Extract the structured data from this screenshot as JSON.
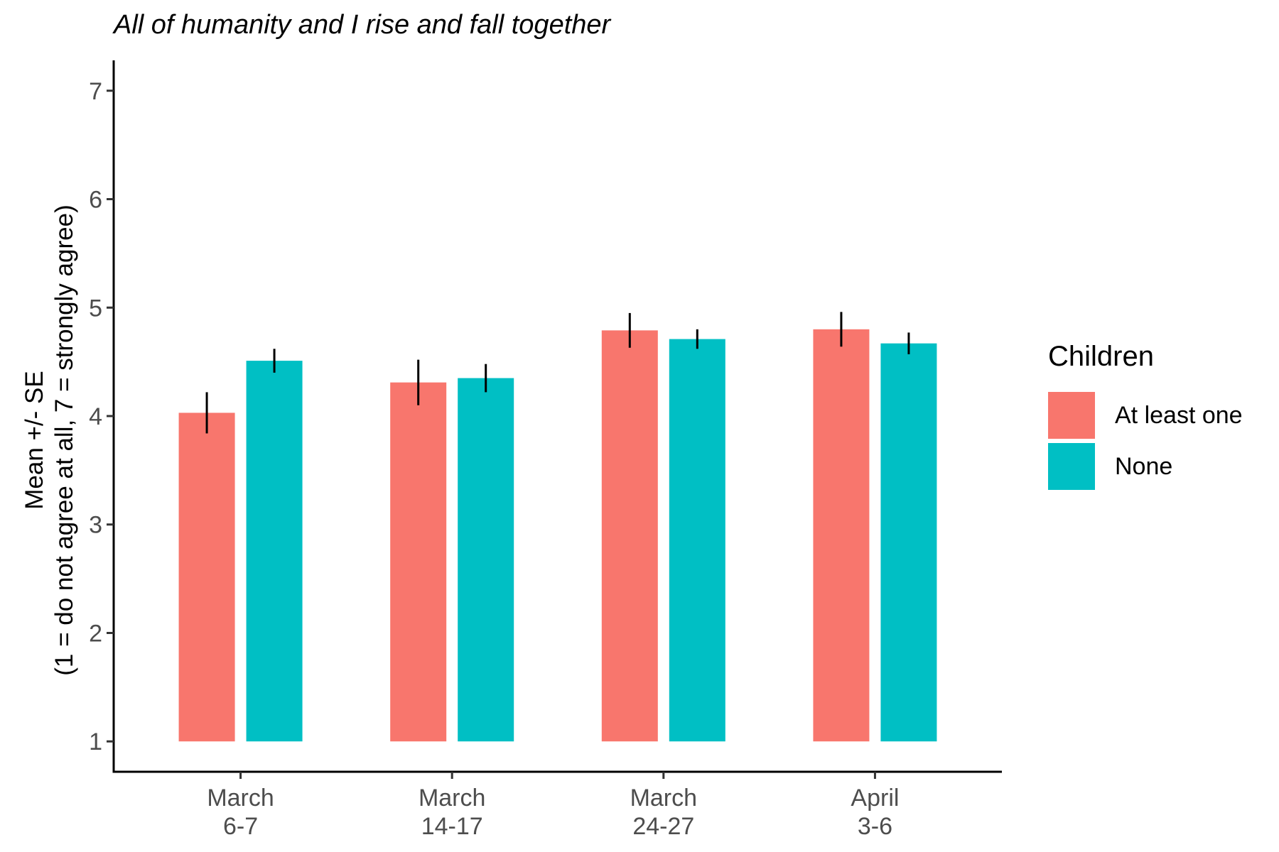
{
  "chart_data": {
    "type": "bar",
    "title": "All of humanity and I rise and fall together",
    "ylabel_line1": "Mean +/- SE",
    "ylabel_line2": "(1 = do not agree at all, 7 = strongly agree)",
    "xlabel": "",
    "categories": [
      [
        "March",
        "6-7"
      ],
      [
        "March",
        "14-17"
      ],
      [
        "March",
        "24-27"
      ],
      [
        "April",
        "3-6"
      ]
    ],
    "ylim": [
      0.72,
      7.28
    ],
    "bar_base": 1,
    "yticks": [
      1,
      2,
      3,
      4,
      5,
      6,
      7
    ],
    "legend_title": "Children",
    "legend_position": "right",
    "grid": false,
    "series": [
      {
        "name": "At least one",
        "color": "#F8766D",
        "values": [
          4.03,
          4.31,
          4.79,
          4.8
        ],
        "se": [
          0.19,
          0.21,
          0.16,
          0.16
        ]
      },
      {
        "name": "None",
        "color": "#00BFC4",
        "values": [
          4.51,
          4.35,
          4.71,
          4.67
        ],
        "se": [
          0.11,
          0.13,
          0.09,
          0.1
        ]
      }
    ]
  }
}
